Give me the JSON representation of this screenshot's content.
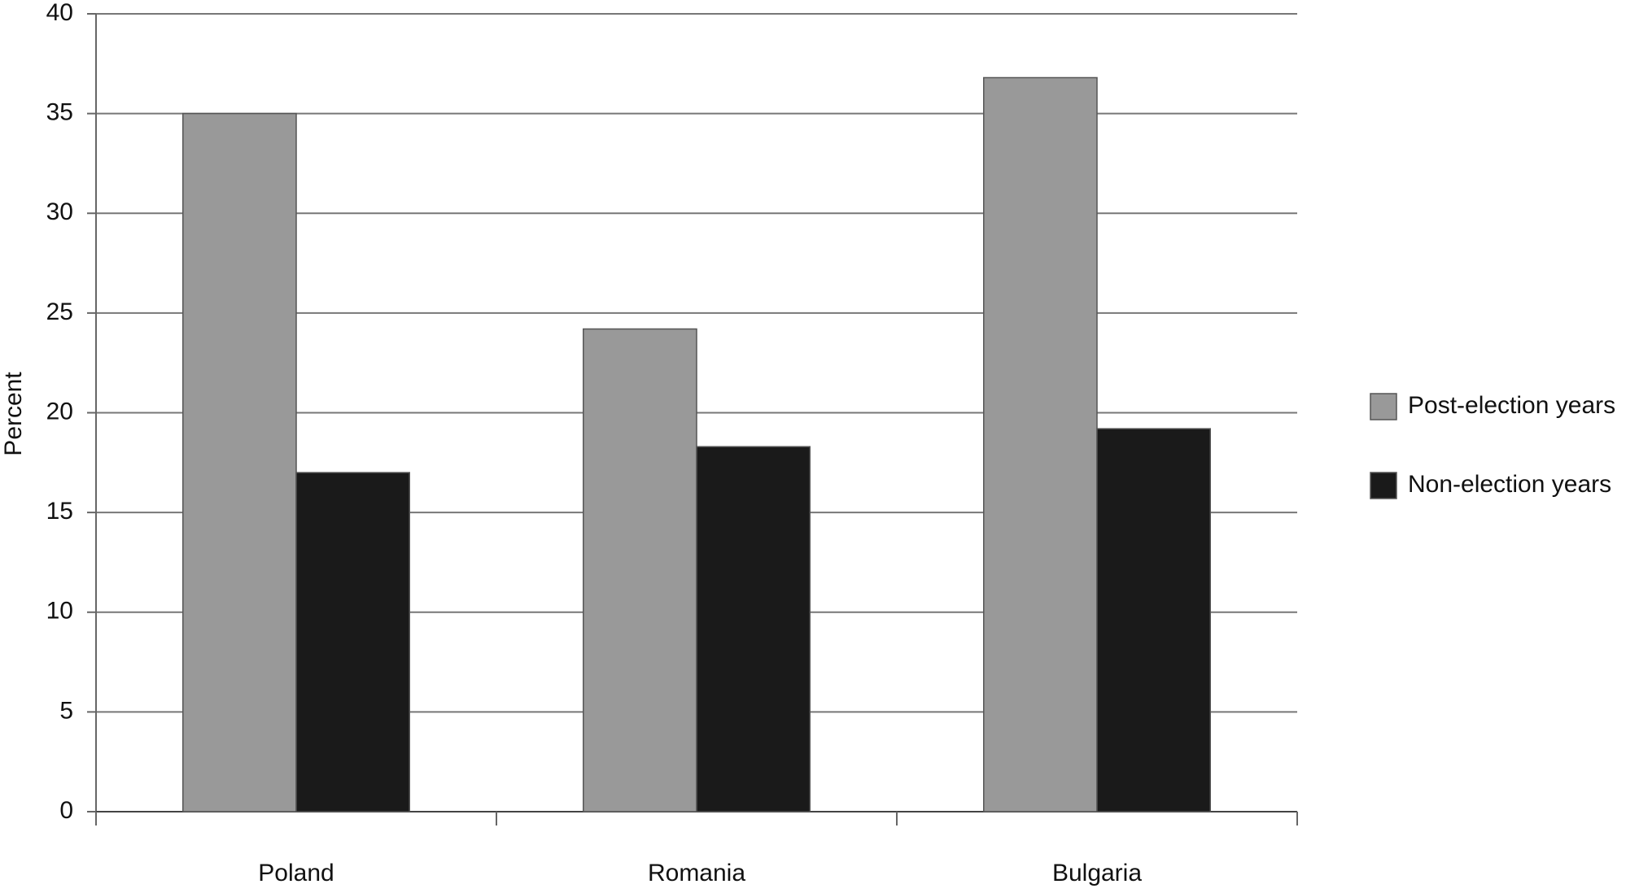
{
  "chart_data": {
    "type": "bar",
    "y_label": "Percent",
    "categories": [
      "Poland",
      "Romania",
      "Bulgaria"
    ],
    "series": [
      {
        "name": "Post-election years",
        "color": "#999999",
        "values": [
          35,
          24.2,
          36.8
        ]
      },
      {
        "name": "Non-election years",
        "color": "#1a1a1a",
        "values": [
          17,
          18.3,
          19.2
        ]
      }
    ],
    "ylim": [
      0,
      40
    ],
    "yticks": [
      0,
      5,
      10,
      15,
      20,
      25,
      30,
      35,
      40
    ],
    "grid": true,
    "legend": "right"
  }
}
